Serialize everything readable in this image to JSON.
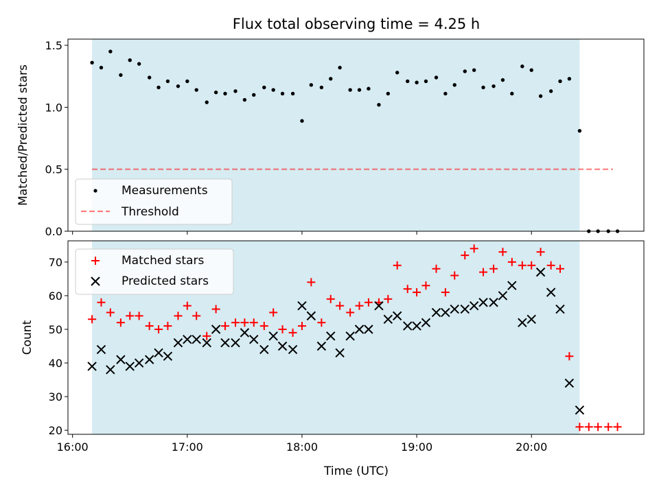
{
  "title": "Flux total observing time = 4.25 h",
  "colors": {
    "shade": "#add8e6",
    "measurement": "#000000",
    "threshold": "#ff0000",
    "matched": "#ff0000",
    "predicted": "#000000"
  },
  "chart_data": [
    {
      "type": "scatter",
      "ylabel": "Matched/Predicted stars",
      "ylim": [
        0,
        1.55
      ],
      "yticks": [
        0.0,
        0.5,
        1.0,
        1.5
      ],
      "ytick_labels": [
        "0.0",
        "0.5",
        "1.0",
        "1.5"
      ],
      "xlim": [
        15.96,
        20.98
      ],
      "shaded_region": [
        16.17,
        20.42
      ],
      "legend_placement": "lower-left",
      "series": [
        {
          "name": "Measurements",
          "marker": "dot",
          "x": [
            16.17,
            16.25,
            16.33,
            16.42,
            16.5,
            16.58,
            16.67,
            16.75,
            16.83,
            16.92,
            17.0,
            17.08,
            17.17,
            17.25,
            17.33,
            17.42,
            17.5,
            17.58,
            17.67,
            17.75,
            17.83,
            17.92,
            18.0,
            18.08,
            18.17,
            18.25,
            18.33,
            18.42,
            18.5,
            18.58,
            18.67,
            18.75,
            18.83,
            18.92,
            19.0,
            19.08,
            19.17,
            19.25,
            19.33,
            19.42,
            19.5,
            19.58,
            19.67,
            19.75,
            19.83,
            19.92,
            20.0,
            20.08,
            20.17,
            20.25,
            20.33,
            20.42,
            20.5,
            20.58,
            20.67,
            20.75
          ],
          "y": [
            1.36,
            1.32,
            1.45,
            1.26,
            1.38,
            1.35,
            1.24,
            1.16,
            1.21,
            1.17,
            1.21,
            1.14,
            1.04,
            1.12,
            1.11,
            1.13,
            1.06,
            1.1,
            1.16,
            1.14,
            1.11,
            1.11,
            0.89,
            1.18,
            1.16,
            1.23,
            1.32,
            1.14,
            1.14,
            1.15,
            1.02,
            1.11,
            1.28,
            1.21,
            1.2,
            1.21,
            1.24,
            1.11,
            1.18,
            1.29,
            1.3,
            1.16,
            1.17,
            1.22,
            1.11,
            1.33,
            1.3,
            1.09,
            1.13,
            1.21,
            1.23,
            0.81,
            0.0,
            0.0,
            0.0,
            0.0
          ]
        },
        {
          "name": "Threshold",
          "style": "dashed",
          "x": [
            16.17,
            20.71
          ],
          "y": [
            0.5,
            0.5
          ]
        }
      ]
    },
    {
      "type": "scatter",
      "xlabel": "Time (UTC)",
      "ylabel": "Count",
      "ylim": [
        18.8,
        76.3
      ],
      "yticks": [
        20,
        30,
        40,
        50,
        60,
        70
      ],
      "ytick_labels": [
        "20",
        "30",
        "40",
        "50",
        "60",
        "70"
      ],
      "xlim": [
        15.96,
        20.98
      ],
      "xticks": [
        16,
        17,
        18,
        19,
        20
      ],
      "xtick_labels": [
        "16:00",
        "17:00",
        "18:00",
        "19:00",
        "20:00"
      ],
      "shaded_region": [
        16.17,
        20.42
      ],
      "legend_placement": "upper-left",
      "series": [
        {
          "name": "Matched stars",
          "marker": "plus",
          "x": [
            16.17,
            16.25,
            16.33,
            16.42,
            16.5,
            16.58,
            16.67,
            16.75,
            16.83,
            16.92,
            17.0,
            17.08,
            17.17,
            17.25,
            17.33,
            17.42,
            17.5,
            17.58,
            17.67,
            17.75,
            17.83,
            17.92,
            18.0,
            18.08,
            18.17,
            18.25,
            18.33,
            18.42,
            18.5,
            18.58,
            18.67,
            18.75,
            18.83,
            18.92,
            19.0,
            19.08,
            19.17,
            19.25,
            19.33,
            19.42,
            19.5,
            19.58,
            19.67,
            19.75,
            19.83,
            19.92,
            20.0,
            20.08,
            20.17,
            20.25,
            20.33,
            20.42,
            20.5,
            20.58,
            20.67,
            20.75
          ],
          "y": [
            53,
            58,
            55,
            52,
            54,
            54,
            51,
            50,
            51,
            54,
            57,
            54,
            48,
            56,
            51,
            52,
            52,
            52,
            51,
            55,
            50,
            49,
            51,
            64,
            52,
            59,
            57,
            55,
            57,
            58,
            58,
            59,
            69,
            62,
            61,
            63,
            68,
            61,
            66,
            72,
            74,
            67,
            68,
            73,
            70,
            69,
            69,
            73,
            69,
            68,
            42,
            21,
            21,
            21,
            21,
            21
          ]
        },
        {
          "name": "Predicted stars",
          "marker": "x",
          "x": [
            16.17,
            16.25,
            16.33,
            16.42,
            16.5,
            16.58,
            16.67,
            16.75,
            16.83,
            16.92,
            17.0,
            17.08,
            17.17,
            17.25,
            17.33,
            17.42,
            17.5,
            17.58,
            17.67,
            17.75,
            17.83,
            17.92,
            18.0,
            18.08,
            18.17,
            18.25,
            18.33,
            18.42,
            18.5,
            18.58,
            18.67,
            18.75,
            18.83,
            18.92,
            19.0,
            19.08,
            19.17,
            19.25,
            19.33,
            19.42,
            19.5,
            19.58,
            19.67,
            19.75,
            19.83,
            19.92,
            20.0,
            20.08,
            20.17,
            20.25,
            20.33,
            20.42
          ],
          "y": [
            39,
            44,
            38,
            41,
            39,
            40,
            41,
            43,
            42,
            46,
            47,
            47,
            46,
            50,
            46,
            46,
            49,
            47,
            44,
            48,
            45,
            44,
            57,
            54,
            45,
            48,
            43,
            48,
            50,
            50,
            57,
            53,
            54,
            51,
            51,
            52,
            55,
            55,
            56,
            56,
            57,
            58,
            58,
            60,
            63,
            52,
            53,
            67,
            61,
            56,
            34,
            26
          ]
        }
      ]
    }
  ]
}
